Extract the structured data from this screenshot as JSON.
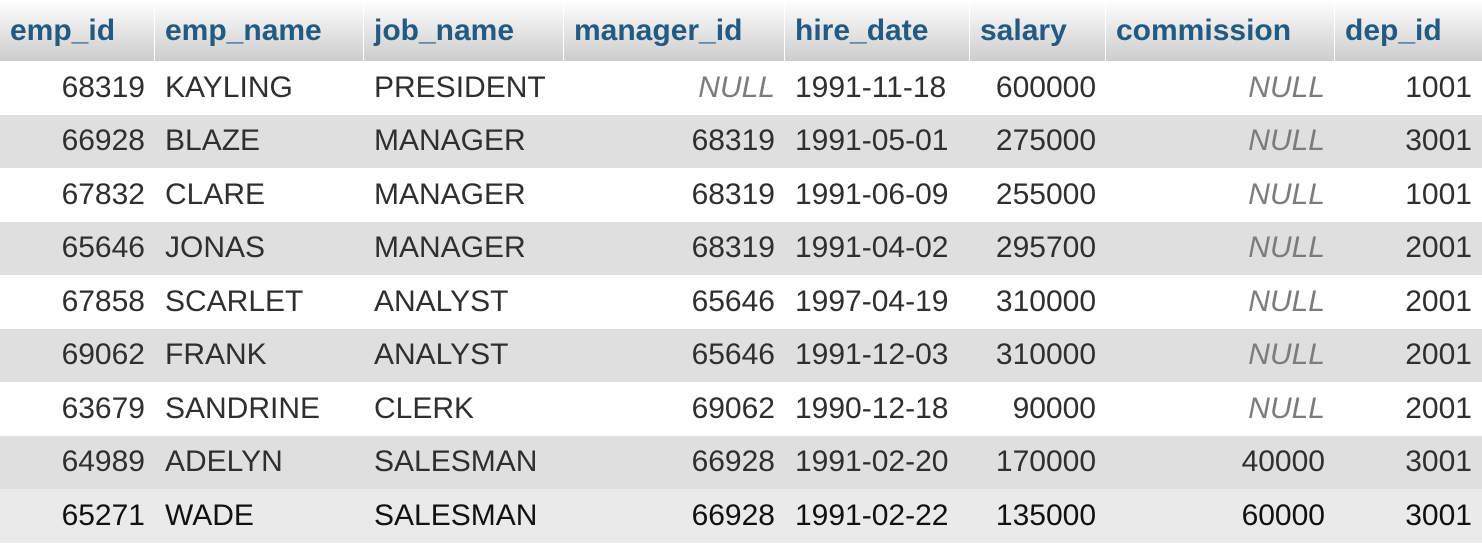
{
  "columns": [
    "emp_id",
    "emp_name",
    "job_name",
    "manager_id",
    "hire_date",
    "salary",
    "commission",
    "dep_id"
  ],
  "rows": [
    [
      "68319",
      "KAYLING",
      "PRESIDENT",
      "NULL",
      "1991-11-18",
      "600000",
      "NULL",
      "1001"
    ],
    [
      "66928",
      "BLAZE",
      "MANAGER",
      "68319",
      "1991-05-01",
      "275000",
      "NULL",
      "3001"
    ],
    [
      "67832",
      "CLARE",
      "MANAGER",
      "68319",
      "1991-06-09",
      "255000",
      "NULL",
      "1001"
    ],
    [
      "65646",
      "JONAS",
      "MANAGER",
      "68319",
      "1991-04-02",
      "295700",
      "NULL",
      "2001"
    ],
    [
      "67858",
      "SCARLET",
      "ANALYST",
      "65646",
      "1997-04-19",
      "310000",
      "NULL",
      "2001"
    ],
    [
      "69062",
      "FRANK",
      "ANALYST",
      "65646",
      "1991-12-03",
      "310000",
      "NULL",
      "2001"
    ],
    [
      "63679",
      "SANDRINE",
      "CLERK",
      "69062",
      "1990-12-18",
      "90000",
      "NULL",
      "2001"
    ],
    [
      "64989",
      "ADELYN",
      "SALESMAN",
      "66928",
      "1991-02-20",
      "170000",
      "40000",
      "3001"
    ],
    [
      "65271",
      "WADE",
      "SALESMAN",
      "66928",
      "1991-02-22",
      "135000",
      "60000",
      "3001"
    ]
  ],
  "colors": {
    "header_text": "#235a81",
    "row_even": "#dfdfdf",
    "row_odd": "#ffffff",
    "null_text": "#7c7c7c"
  }
}
